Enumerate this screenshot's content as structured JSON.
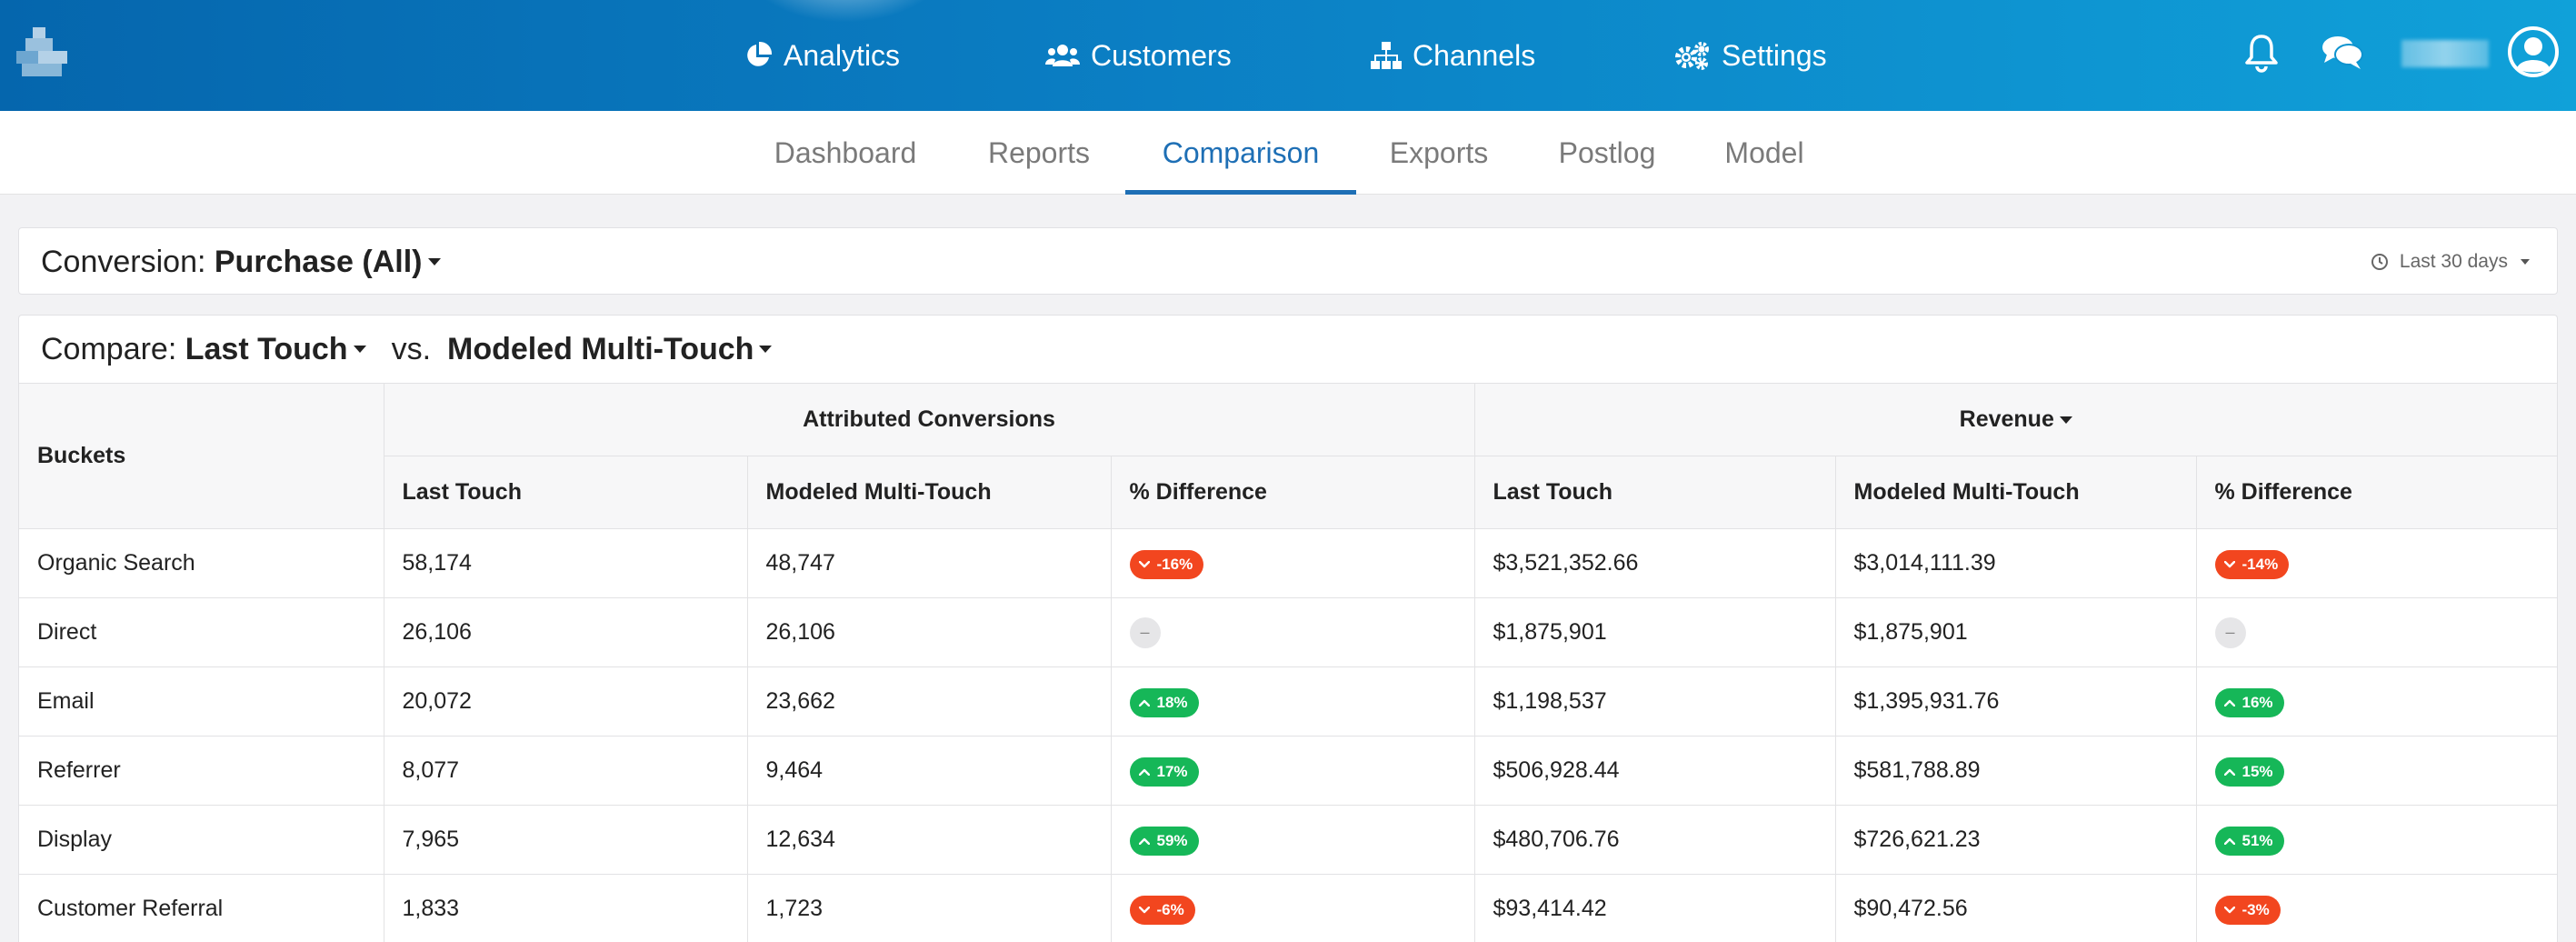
{
  "nav": {
    "items": [
      {
        "label": "Analytics",
        "icon": "pie-chart-icon"
      },
      {
        "label": "Customers",
        "icon": "users-icon"
      },
      {
        "label": "Channels",
        "icon": "sitemap-icon"
      },
      {
        "label": "Settings",
        "icon": "gears-icon"
      }
    ],
    "right_icons": [
      "bell-icon",
      "chat-icon",
      "user-avatar-icon"
    ]
  },
  "subnav": {
    "tabs": [
      "Dashboard",
      "Reports",
      "Comparison",
      "Exports",
      "Postlog",
      "Model"
    ],
    "active": "Comparison"
  },
  "conversion": {
    "label": "Conversion:",
    "value": "Purchase (All)",
    "date_range": "Last 30 days"
  },
  "compare": {
    "label": "Compare:",
    "left_model": "Last Touch",
    "vs": "vs.",
    "right_model": "Modeled Multi-Touch"
  },
  "table": {
    "bucket_header": "Buckets",
    "group_conversions": "Attributed Conversions",
    "group_revenue": "Revenue",
    "columns": [
      "Last Touch",
      "Modeled Multi-Touch",
      "% Difference",
      "Last Touch",
      "Modeled Multi-Touch",
      "% Difference"
    ],
    "rows": [
      {
        "bucket": "Organic Search",
        "conv_lt": "58,174",
        "conv_mmt": "48,747",
        "conv_diff": "-16%",
        "conv_dir": "down",
        "rev_lt": "$3,521,352.66",
        "rev_mmt": "$3,014,111.39",
        "rev_diff": "-14%",
        "rev_dir": "down"
      },
      {
        "bucket": "Direct",
        "conv_lt": "26,106",
        "conv_mmt": "26,106",
        "conv_diff": "–",
        "conv_dir": "none",
        "rev_lt": "$1,875,901",
        "rev_mmt": "$1,875,901",
        "rev_diff": "–",
        "rev_dir": "none"
      },
      {
        "bucket": "Email",
        "conv_lt": "20,072",
        "conv_mmt": "23,662",
        "conv_diff": "18%",
        "conv_dir": "up",
        "rev_lt": "$1,198,537",
        "rev_mmt": "$1,395,931.76",
        "rev_diff": "16%",
        "rev_dir": "up"
      },
      {
        "bucket": "Referrer",
        "conv_lt": "8,077",
        "conv_mmt": "9,464",
        "conv_diff": "17%",
        "conv_dir": "up",
        "rev_lt": "$506,928.44",
        "rev_mmt": "$581,788.89",
        "rev_diff": "15%",
        "rev_dir": "up"
      },
      {
        "bucket": "Display",
        "conv_lt": "7,965",
        "conv_mmt": "12,634",
        "conv_diff": "59%",
        "conv_dir": "up",
        "rev_lt": "$480,706.76",
        "rev_mmt": "$726,621.23",
        "rev_diff": "51%",
        "rev_dir": "up"
      },
      {
        "bucket": "Customer Referral",
        "conv_lt": "1,833",
        "conv_mmt": "1,723",
        "conv_diff": "-6%",
        "conv_dir": "down",
        "rev_lt": "$93,414.42",
        "rev_mmt": "$90,472.56",
        "rev_diff": "-3%",
        "rev_dir": "down"
      }
    ]
  },
  "colors": {
    "brand_blue": "#0b7fc4",
    "active_tab": "#1e6fb5",
    "negative": "#f2461f",
    "positive": "#16b758",
    "neutral": "#e6e6e8"
  }
}
